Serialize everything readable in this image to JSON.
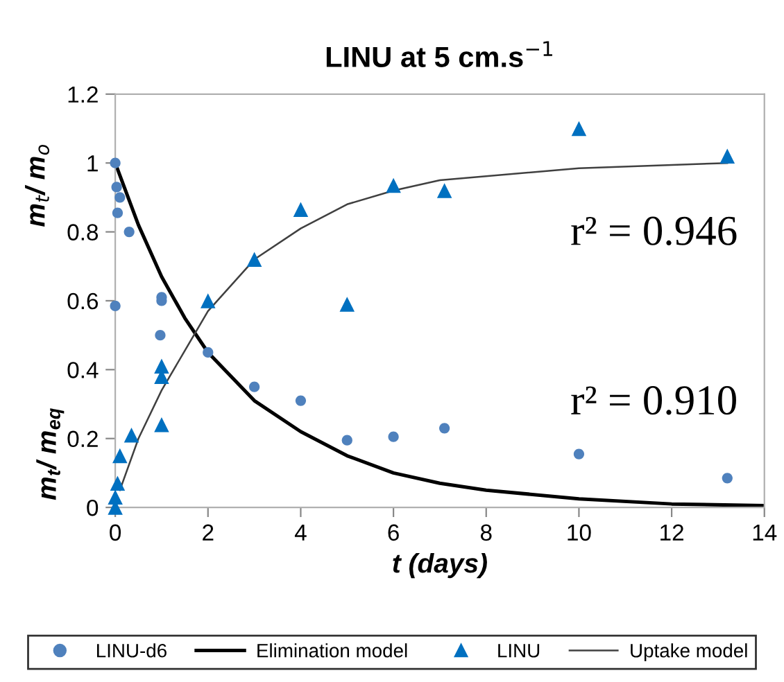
{
  "chart_data": {
    "type": "scatter",
    "title": "LINU at 5 cm.s$^{−1}$",
    "xlabel": "t (days)",
    "ylabel": "m$_{t}$/ m$_{o}$",
    "xlim": [
      0,
      14
    ],
    "ylim": [
      0,
      1.2
    ],
    "xticks": [
      0,
      2,
      4,
      6,
      8,
      10,
      12,
      14
    ],
    "yticks": [
      0,
      0.2,
      0.4,
      0.6,
      0.8,
      1,
      1.2
    ],
    "grid": false,
    "legend": "bottom",
    "series": [
      {
        "name": "LINU-d6",
        "marker": "circle",
        "color": "#4f81bd",
        "x": [
          0,
          0.03,
          0.1,
          0.05,
          0.3,
          0,
          1,
          1,
          0.97,
          2,
          3,
          4,
          5,
          6,
          7.1,
          10,
          13.2
        ],
        "values": [
          1.0,
          0.93,
          0.9,
          0.855,
          0.8,
          0.585,
          0.61,
          0.6,
          0.5,
          0.45,
          0.35,
          0.31,
          0.195,
          0.205,
          0.23,
          0.155,
          0.085
        ]
      },
      {
        "name": "Elimination model",
        "type": "line",
        "marker": "none",
        "color": "#000000",
        "x": [
          0,
          0.5,
          1,
          1.5,
          2,
          3,
          4,
          5,
          6,
          7,
          8,
          10,
          12,
          14
        ],
        "values": [
          1.0,
          0.82,
          0.67,
          0.55,
          0.45,
          0.31,
          0.22,
          0.15,
          0.1,
          0.07,
          0.05,
          0.025,
          0.01,
          0.005
        ]
      },
      {
        "name": "LINU",
        "marker": "triangle",
        "color": "#0070c0",
        "x": [
          0,
          0,
          0.05,
          0.1,
          0.35,
          1,
          1,
          1,
          2,
          3,
          4,
          5,
          6,
          7.1,
          10,
          13.2
        ],
        "values": [
          0,
          0.03,
          0.07,
          0.15,
          0.21,
          0.41,
          0.38,
          0.24,
          0.6,
          0.72,
          0.865,
          0.59,
          0.935,
          0.92,
          1.1,
          1.02
        ]
      },
      {
        "name": "Uptake model",
        "type": "line",
        "marker": "none",
        "color": "#404040",
        "x": [
          0.1,
          0.5,
          1,
          2,
          3,
          4,
          5,
          6,
          7,
          10,
          13.2
        ],
        "values": [
          0.05,
          0.2,
          0.34,
          0.57,
          0.72,
          0.81,
          0.88,
          0.92,
          0.95,
          0.985,
          1.0
        ]
      }
    ],
    "annotations": [
      "m$_{t}$/ m$_{eq}$",
      "r² = 0.946",
      "r² = 0.910"
    ]
  }
}
